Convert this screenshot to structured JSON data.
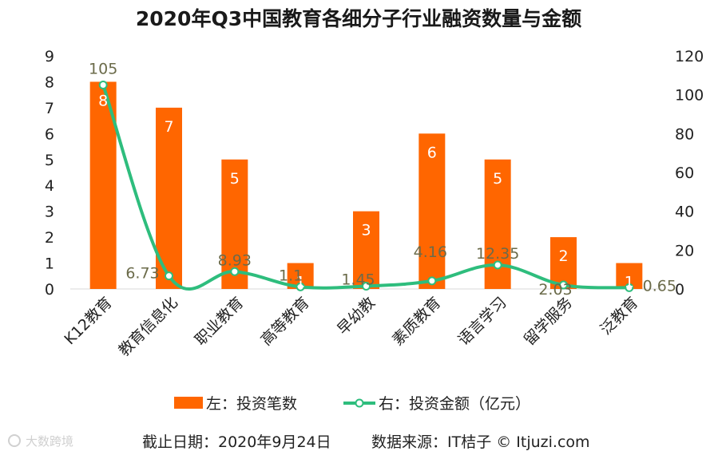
{
  "chart_data": {
    "type": "bar",
    "title": "2020年Q3中国教育各细分子行业融资数量与金额",
    "categories": [
      "K12教育",
      "教育信息化",
      "职业教育",
      "高等教育",
      "早幼教",
      "素质教育",
      "语言学习",
      "留学服务",
      "泛教育"
    ],
    "series": [
      {
        "name": "左：投资笔数",
        "type": "bar",
        "axis": "left",
        "color": "#ff6600",
        "values": [
          8,
          7,
          5,
          1,
          3,
          6,
          5,
          2,
          1
        ],
        "labels": [
          "8",
          "7",
          "5",
          "1",
          "3",
          "6",
          "5",
          "2",
          "1"
        ]
      },
      {
        "name": "右：投资金额（亿元）",
        "type": "line",
        "axis": "right",
        "color": "#2ebd7d",
        "values": [
          105,
          6.73,
          8.93,
          1.1,
          1.45,
          4.16,
          12.35,
          2.03,
          0.65
        ],
        "labels": [
          "105",
          "6.73",
          "8.93",
          "1.1",
          "1.45",
          "4.16",
          "12.35",
          "2.03",
          "0.65"
        ]
      }
    ],
    "y_left": {
      "min": 0,
      "max": 9,
      "ticks": [
        "0",
        "1",
        "2",
        "3",
        "4",
        "5",
        "6",
        "7",
        "8",
        "9"
      ]
    },
    "y_right": {
      "min": 0,
      "max": 120,
      "ticks": [
        "0",
        "20",
        "40",
        "60",
        "80",
        "100",
        "120"
      ]
    },
    "grid": false,
    "legend_position": "bottom"
  },
  "footer": {
    "date": "截止日期：2020年9月24日",
    "source": "数据来源：IT桔子 © Itjuzi.com"
  },
  "watermark": "大数跨境"
}
